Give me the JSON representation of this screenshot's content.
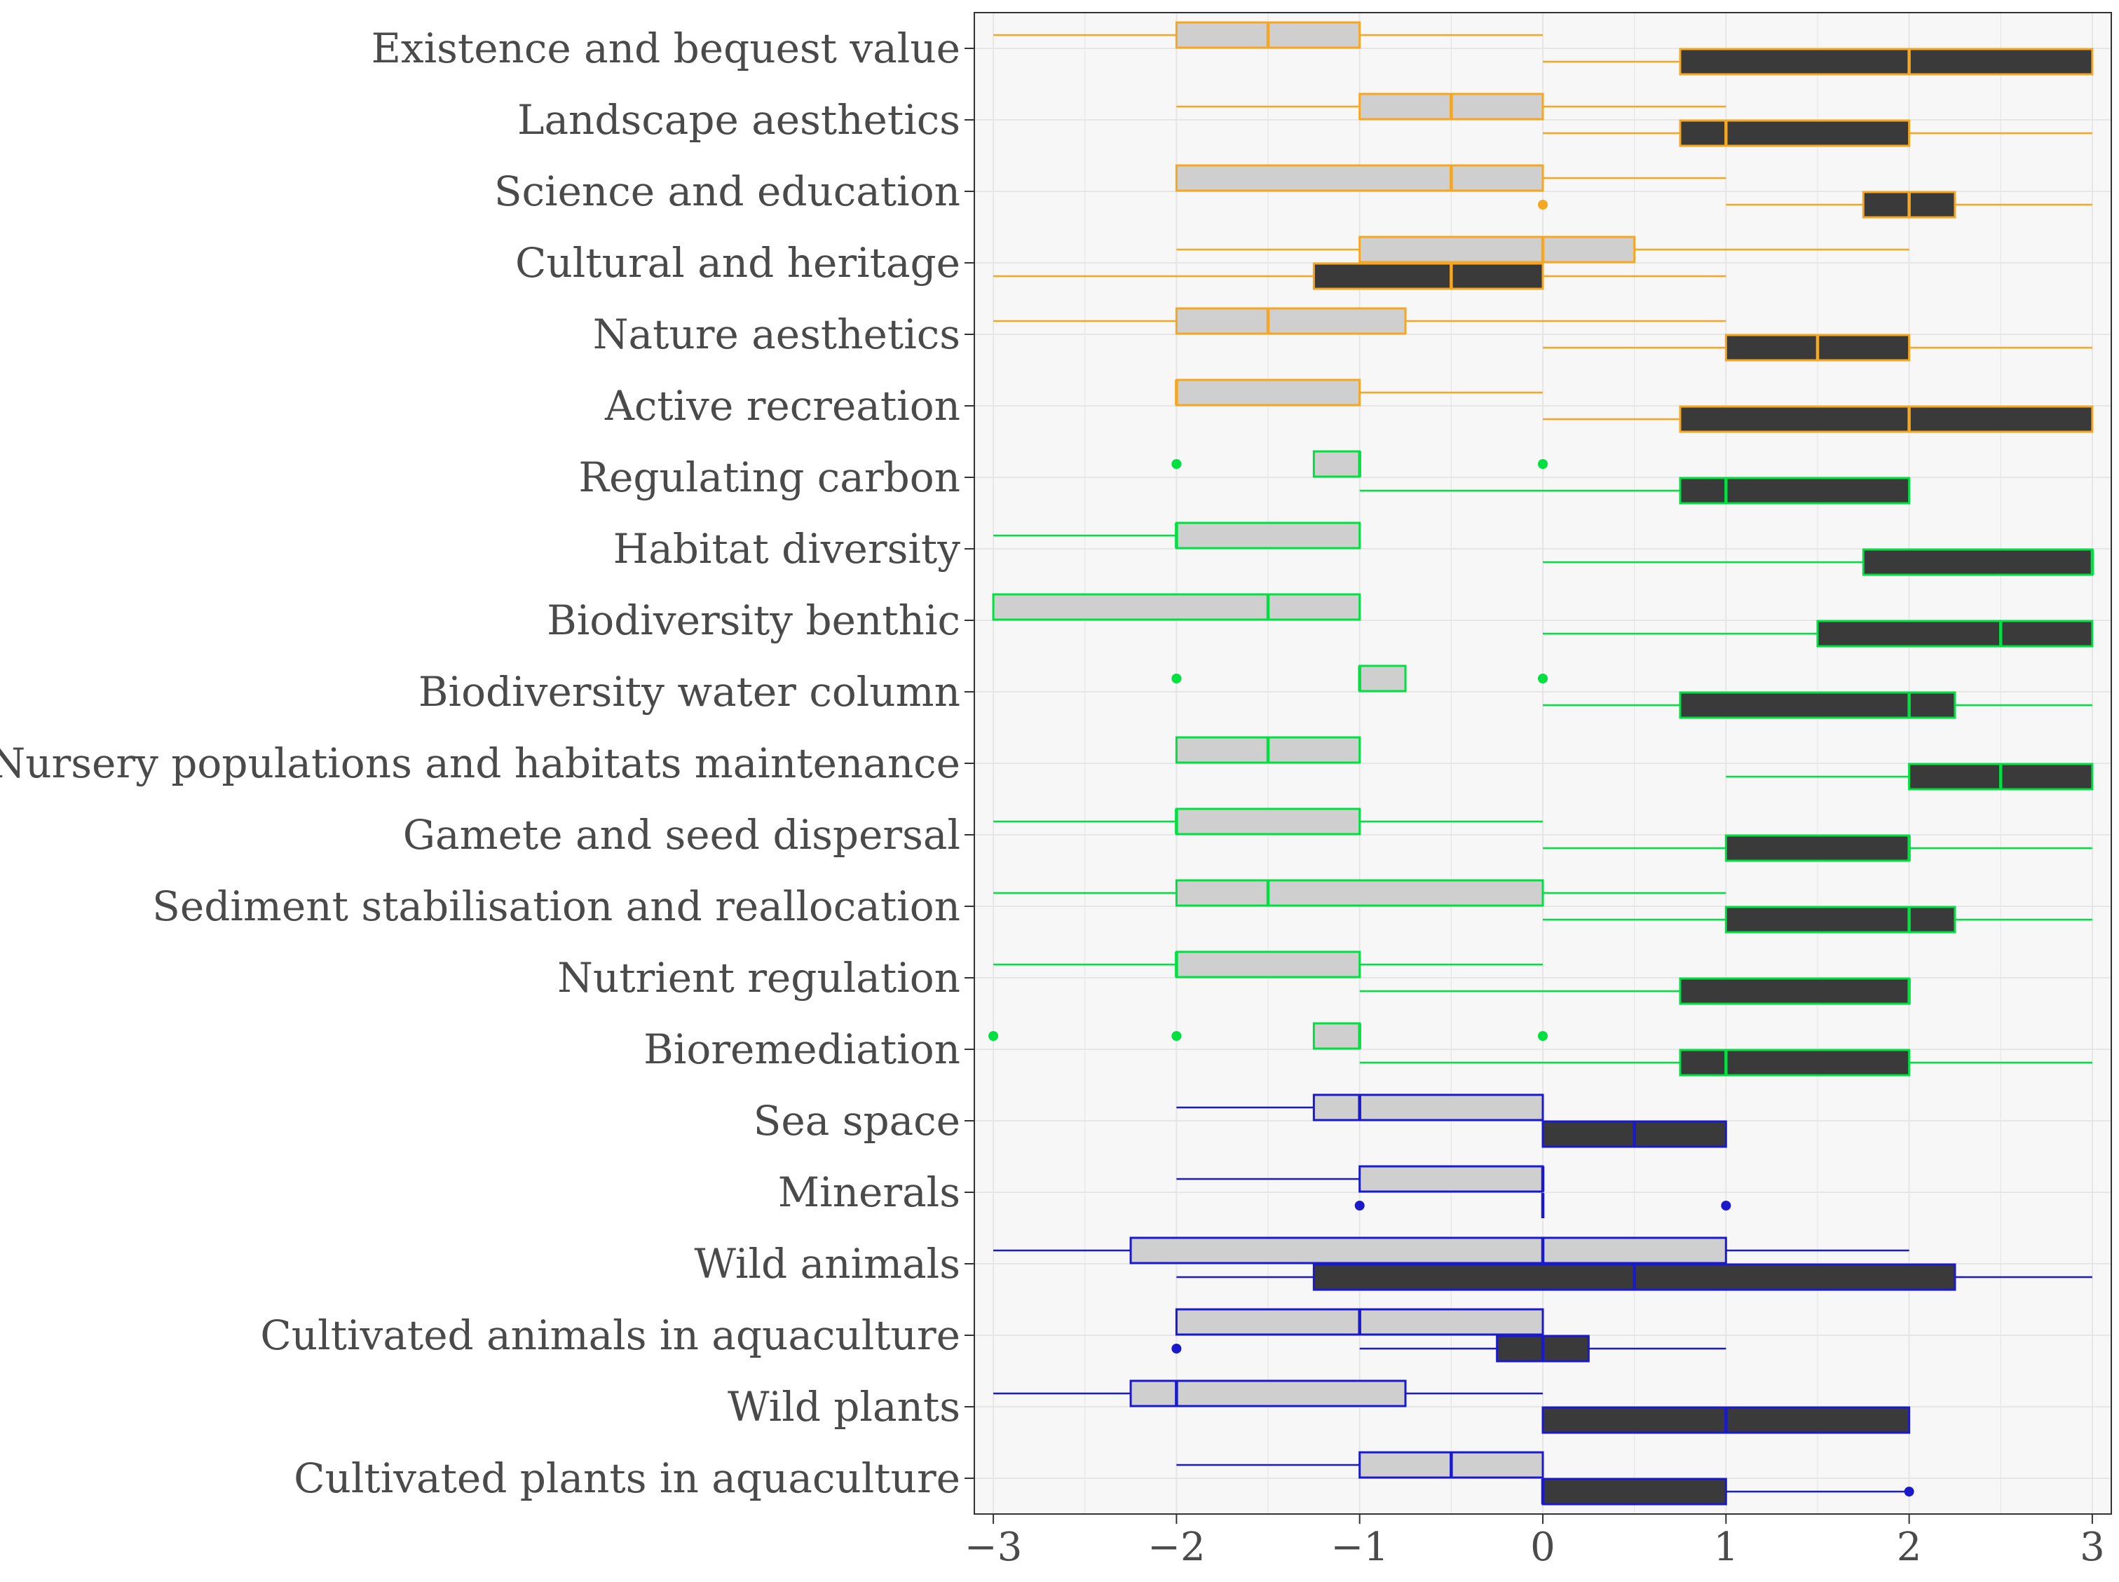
{
  "chart_data": {
    "type": "boxplot",
    "title": "",
    "xlabel": "",
    "ylabel": "",
    "xlim": [
      -3,
      3
    ],
    "x_ticks": [
      -3,
      -2,
      -1,
      0,
      1,
      2,
      3
    ],
    "x_tick_labels": [
      "−3",
      "−2",
      "−1",
      "0",
      "1",
      "2",
      "3"
    ],
    "grid": true,
    "legend": "none",
    "colors": {
      "orange": "#f5a623",
      "green": "#00e040",
      "blue": "#1a1acc",
      "light_fill": "#cfcfcf",
      "dark_fill": "#3a3a3a",
      "panel": "#f7f7f7",
      "grid": "#e6e6e6"
    },
    "groups": [
      {
        "label": "Existence and bequest value",
        "color": "orange",
        "boxes": [
          {
            "fill": "light",
            "min": -3,
            "q1": -2,
            "median": -1.5,
            "q3": -1,
            "max": 0,
            "outliers": []
          },
          {
            "fill": "dark",
            "min": 0,
            "q1": 0.75,
            "median": 2,
            "q3": 3,
            "max": 3,
            "outliers": []
          }
        ]
      },
      {
        "label": "Landscape aesthetics",
        "color": "orange",
        "boxes": [
          {
            "fill": "light",
            "min": -2,
            "q1": -1,
            "median": -0.5,
            "q3": 0,
            "max": 1,
            "outliers": []
          },
          {
            "fill": "dark",
            "min": 0,
            "q1": 0.75,
            "median": 1,
            "q3": 2,
            "max": 3,
            "outliers": []
          }
        ]
      },
      {
        "label": "Science and education",
        "color": "orange",
        "boxes": [
          {
            "fill": "light",
            "min": -2,
            "q1": -2,
            "median": -0.5,
            "q3": 0,
            "max": 1,
            "outliers": []
          },
          {
            "fill": "dark",
            "min": 1,
            "q1": 1.75,
            "median": 2,
            "q3": 2.25,
            "max": 3,
            "outliers": [
              0
            ]
          }
        ]
      },
      {
        "label": "Cultural and heritage",
        "color": "orange",
        "boxes": [
          {
            "fill": "light",
            "min": -2,
            "q1": -1,
            "median": 0,
            "q3": 0.5,
            "max": 2,
            "outliers": []
          },
          {
            "fill": "dark",
            "min": -3,
            "q1": -1.25,
            "median": -0.5,
            "q3": 0,
            "max": 1,
            "outliers": []
          }
        ]
      },
      {
        "label": "Nature aesthetics",
        "color": "orange",
        "boxes": [
          {
            "fill": "light",
            "min": -3,
            "q1": -2,
            "median": -1.5,
            "q3": -0.75,
            "max": 1,
            "outliers": []
          },
          {
            "fill": "dark",
            "min": 0,
            "q1": 1,
            "median": 1.5,
            "q3": 2,
            "max": 3,
            "outliers": []
          }
        ]
      },
      {
        "label": "Active recreation",
        "color": "orange",
        "boxes": [
          {
            "fill": "light",
            "min": -2,
            "q1": -2,
            "median": -2,
            "q3": -1,
            "max": 0,
            "outliers": []
          },
          {
            "fill": "dark",
            "min": 0,
            "q1": 0.75,
            "median": 2,
            "q3": 3,
            "max": 3,
            "outliers": []
          }
        ]
      },
      {
        "label": "Regulating carbon",
        "color": "green",
        "boxes": [
          {
            "fill": "light",
            "min": -1.25,
            "q1": -1.25,
            "median": -1,
            "q3": -1,
            "max": -1,
            "outliers": [
              -2,
              0
            ]
          },
          {
            "fill": "dark",
            "min": -1,
            "q1": 0.75,
            "median": 1,
            "q3": 2,
            "max": 2,
            "outliers": []
          }
        ]
      },
      {
        "label": "Habitat diversity",
        "color": "green",
        "boxes": [
          {
            "fill": "light",
            "min": -3,
            "q1": -2,
            "median": -2,
            "q3": -1,
            "max": -1,
            "outliers": []
          },
          {
            "fill": "dark",
            "min": 0,
            "q1": 1.75,
            "median": 3,
            "q3": 3,
            "max": 3,
            "outliers": []
          }
        ]
      },
      {
        "label": "Biodiversity benthic",
        "color": "green",
        "boxes": [
          {
            "fill": "light",
            "min": -3,
            "q1": -3,
            "median": -1.5,
            "q3": -1,
            "max": -1,
            "outliers": []
          },
          {
            "fill": "dark",
            "min": 0,
            "q1": 1.5,
            "median": 2.5,
            "q3": 3,
            "max": 3,
            "outliers": []
          }
        ]
      },
      {
        "label": "Biodiversity water column",
        "color": "green",
        "boxes": [
          {
            "fill": "light",
            "min": -1,
            "q1": -1,
            "median": -1,
            "q3": -0.75,
            "max": -0.75,
            "outliers": [
              -2,
              0
            ]
          },
          {
            "fill": "dark",
            "min": 0,
            "q1": 0.75,
            "median": 2,
            "q3": 2.25,
            "max": 3,
            "outliers": []
          }
        ]
      },
      {
        "label": "Nursery populations and habitats maintenance",
        "color": "green",
        "boxes": [
          {
            "fill": "light",
            "min": -2,
            "q1": -2,
            "median": -1.5,
            "q3": -1,
            "max": -1,
            "outliers": []
          },
          {
            "fill": "dark",
            "min": 1,
            "q1": 2,
            "median": 2.5,
            "q3": 3,
            "max": 3,
            "outliers": []
          }
        ]
      },
      {
        "label": "Gamete and seed dispersal",
        "color": "green",
        "boxes": [
          {
            "fill": "light",
            "min": -3,
            "q1": -2,
            "median": -2,
            "q3": -1,
            "max": 0,
            "outliers": []
          },
          {
            "fill": "dark",
            "min": 0,
            "q1": 1,
            "median": 2,
            "q3": 2,
            "max": 3,
            "outliers": []
          }
        ]
      },
      {
        "label": "Sediment stabilisation and reallocation",
        "color": "green",
        "boxes": [
          {
            "fill": "light",
            "min": -3,
            "q1": -2,
            "median": -1.5,
            "q3": 0,
            "max": 1,
            "outliers": []
          },
          {
            "fill": "dark",
            "min": 0,
            "q1": 1,
            "median": 2,
            "q3": 2.25,
            "max": 3,
            "outliers": []
          }
        ]
      },
      {
        "label": "Nutrient regulation",
        "color": "green",
        "boxes": [
          {
            "fill": "light",
            "min": -3,
            "q1": -2,
            "median": -2,
            "q3": -1,
            "max": 0,
            "outliers": []
          },
          {
            "fill": "dark",
            "min": -1,
            "q1": 0.75,
            "median": 2,
            "q3": 2,
            "max": 2,
            "outliers": []
          }
        ]
      },
      {
        "label": "Bioremediation",
        "color": "green",
        "boxes": [
          {
            "fill": "light",
            "min": -1.25,
            "q1": -1.25,
            "median": -1,
            "q3": -1,
            "max": -1,
            "outliers": [
              -3,
              -2,
              0
            ]
          },
          {
            "fill": "dark",
            "min": -1,
            "q1": 0.75,
            "median": 1,
            "q3": 2,
            "max": 3,
            "outliers": []
          }
        ]
      },
      {
        "label": "Sea space",
        "color": "blue",
        "boxes": [
          {
            "fill": "light",
            "min": -2,
            "q1": -1.25,
            "median": -1,
            "q3": 0,
            "max": 0,
            "outliers": []
          },
          {
            "fill": "dark",
            "min": 0,
            "q1": 0,
            "median": 0.5,
            "q3": 1,
            "max": 1,
            "outliers": []
          }
        ]
      },
      {
        "label": "Minerals",
        "color": "blue",
        "boxes": [
          {
            "fill": "light",
            "min": -2,
            "q1": -1,
            "median": 0,
            "q3": 0,
            "max": 0,
            "outliers": []
          },
          {
            "fill": "dark",
            "min": 0,
            "q1": 0,
            "median": 0,
            "q3": 0,
            "max": 0,
            "outliers": [
              -1,
              1
            ]
          }
        ]
      },
      {
        "label": "Wild animals",
        "color": "blue",
        "boxes": [
          {
            "fill": "light",
            "min": -3,
            "q1": -2.25,
            "median": 0,
            "q3": 1,
            "max": 2,
            "outliers": []
          },
          {
            "fill": "dark",
            "min": -2,
            "q1": -1.25,
            "median": 0.5,
            "q3": 2.25,
            "max": 3,
            "outliers": []
          }
        ]
      },
      {
        "label": "Cultivated animals in aquaculture",
        "color": "blue",
        "boxes": [
          {
            "fill": "light",
            "min": -2,
            "q1": -2,
            "median": -1,
            "q3": 0,
            "max": 0,
            "outliers": []
          },
          {
            "fill": "dark",
            "min": -1,
            "q1": -0.25,
            "median": 0,
            "q3": 0.25,
            "max": 1,
            "outliers": [
              -2
            ]
          }
        ]
      },
      {
        "label": "Wild plants",
        "color": "blue",
        "boxes": [
          {
            "fill": "light",
            "min": -3,
            "q1": -2.25,
            "median": -2,
            "q3": -0.75,
            "max": 0,
            "outliers": []
          },
          {
            "fill": "dark",
            "min": 0,
            "q1": 0,
            "median": 1,
            "q3": 2,
            "max": 2,
            "outliers": []
          }
        ]
      },
      {
        "label": "Cultivated plants in aquaculture",
        "color": "blue",
        "boxes": [
          {
            "fill": "light",
            "min": -2,
            "q1": -1,
            "median": -0.5,
            "q3": 0,
            "max": 0,
            "outliers": []
          },
          {
            "fill": "dark",
            "min": 0,
            "q1": 0,
            "median": 0,
            "q3": 1,
            "max": 2,
            "outliers": [
              2
            ]
          }
        ]
      }
    ]
  }
}
